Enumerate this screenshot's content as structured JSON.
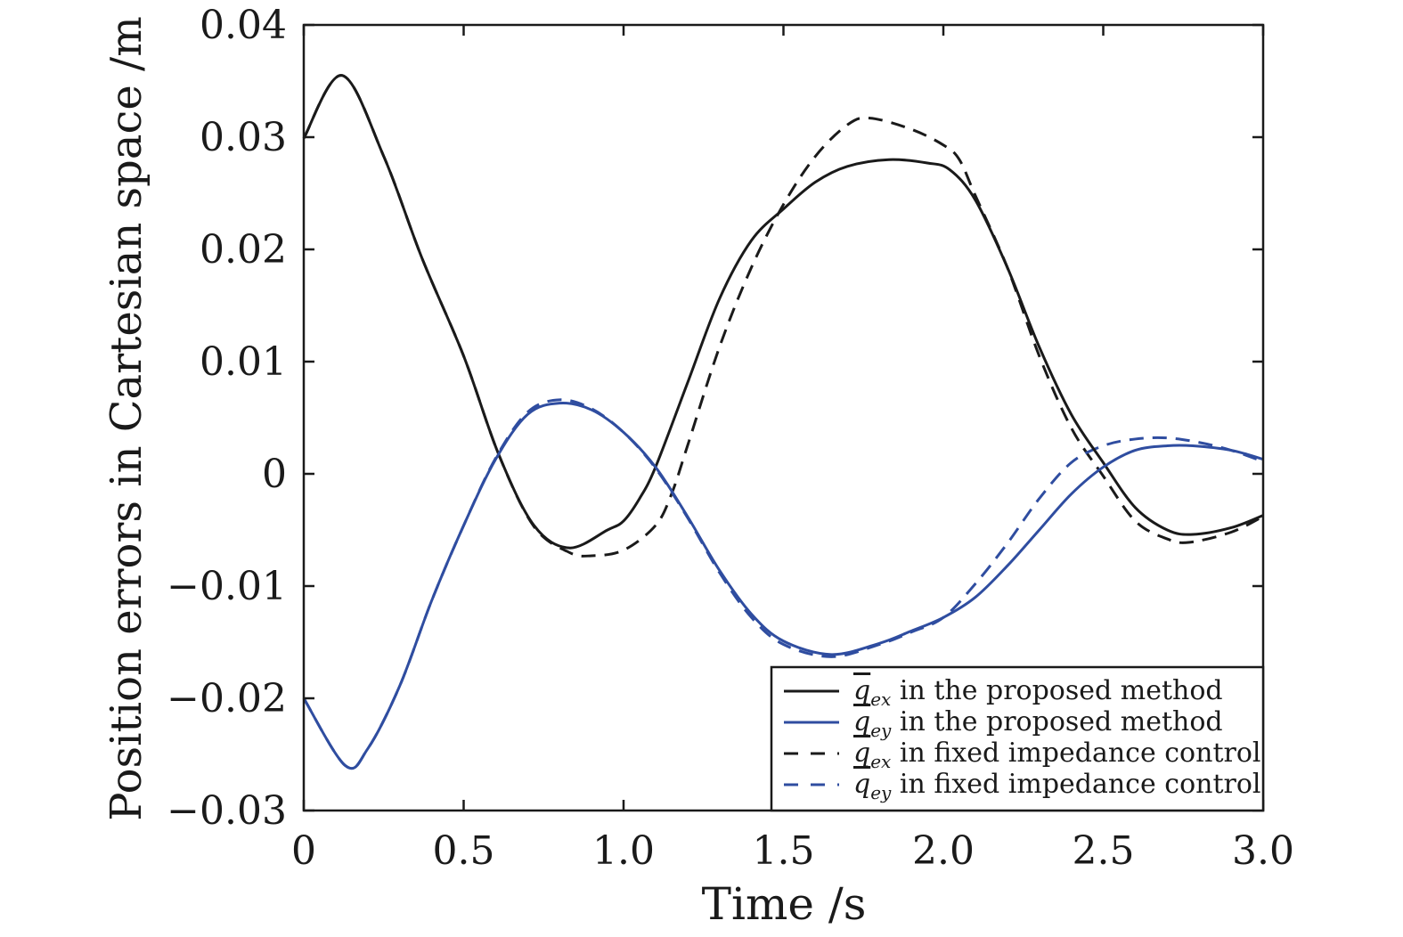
{
  "chart_data": {
    "type": "line",
    "title": "",
    "xlabel": "Time /s",
    "ylabel": "Position errors in Cartesian space /m",
    "xlim": [
      0,
      3.0
    ],
    "ylim": [
      -0.03,
      0.04
    ],
    "xticks": [
      0,
      0.5,
      1.0,
      1.5,
      2.0,
      2.5,
      3.0
    ],
    "xtick_labels": [
      "0",
      "0.5",
      "1.0",
      "1.5",
      "2.0",
      "2.5",
      "3.0"
    ],
    "yticks": [
      -0.03,
      -0.02,
      -0.01,
      0,
      0.01,
      0.02,
      0.03,
      0.04
    ],
    "ytick_labels": [
      "−0.03",
      "−0.02",
      "−0.01",
      "0",
      "0.01",
      "0.02",
      "0.03",
      "0.04"
    ],
    "grid": false,
    "legend_position": "bottom-right",
    "series": [
      {
        "name": "q_ex in the proposed method",
        "symbol": "q",
        "sub": "ex",
        "label": " in the proposed method",
        "color": "#1a1a1a",
        "dash": "solid",
        "x": [
          0,
          0.12,
          0.25,
          0.37,
          0.5,
          0.61,
          0.72,
          0.83,
          0.95,
          1.0,
          1.05,
          1.1,
          1.2,
          1.3,
          1.4,
          1.5,
          1.6,
          1.7,
          1.83,
          1.95,
          2.02,
          2.1,
          2.2,
          2.3,
          2.4,
          2.5,
          2.6,
          2.7,
          2.78,
          2.9,
          3.0
        ],
        "y": [
          0.0299,
          0.0355,
          0.0283,
          0.0192,
          0.0105,
          0.0017,
          -0.0046,
          -0.0066,
          -0.005,
          -0.0042,
          -0.0022,
          0.0006,
          0.0081,
          0.0156,
          0.0208,
          0.0236,
          0.026,
          0.0274,
          0.028,
          0.0277,
          0.0271,
          0.0244,
          0.0184,
          0.0113,
          0.0053,
          0.001,
          -0.003,
          -0.005,
          -0.0054,
          -0.0048,
          -0.0037
        ]
      },
      {
        "name": "q_ey in the proposed method",
        "symbol": "q",
        "sub": "ey",
        "label": " in the proposed method",
        "color": "#2f4da0",
        "dash": "solid",
        "x": [
          0,
          0.13,
          0.2,
          0.3,
          0.4,
          0.5,
          0.6,
          0.7,
          0.8,
          0.9,
          1.0,
          1.1,
          1.2,
          1.3,
          1.4,
          1.5,
          1.65,
          1.8,
          1.9,
          2.0,
          2.1,
          2.2,
          2.3,
          2.4,
          2.5,
          2.6,
          2.7,
          2.78,
          2.9,
          3.0
        ],
        "y": [
          -0.02,
          -0.026,
          -0.0245,
          -0.0189,
          -0.0113,
          -0.0046,
          0.0013,
          0.0053,
          0.0063,
          0.0057,
          0.0037,
          0.0006,
          -0.0038,
          -0.0086,
          -0.0125,
          -0.0149,
          -0.0161,
          -0.0151,
          -0.014,
          -0.0128,
          -0.011,
          -0.0082,
          -0.005,
          -0.0018,
          0.0006,
          0.0021,
          0.0025,
          0.0025,
          0.0021,
          0.0013
        ]
      },
      {
        "name": "q_ex in fixed impedance control",
        "symbol": "q",
        "sub": "ex",
        "label": " in fixed impedance control",
        "color": "#1a1a1a",
        "dash": "dashed",
        "x": [
          0,
          0.12,
          0.25,
          0.37,
          0.5,
          0.61,
          0.72,
          0.83,
          0.9,
          1.0,
          1.1,
          1.15,
          1.2,
          1.3,
          1.4,
          1.5,
          1.6,
          1.7,
          1.77,
          1.9,
          2.0,
          2.05,
          2.1,
          2.2,
          2.3,
          2.4,
          2.5,
          2.6,
          2.7,
          2.77,
          2.9,
          3.0
        ],
        "y": [
          0.0299,
          0.0355,
          0.0283,
          0.0192,
          0.0105,
          0.0017,
          -0.0047,
          -0.007,
          -0.0073,
          -0.0068,
          -0.0046,
          -0.0018,
          0.0025,
          0.0113,
          0.0184,
          0.024,
          0.0283,
          0.0311,
          0.0317,
          0.0307,
          0.0293,
          0.028,
          0.0248,
          0.0184,
          0.0105,
          0.0041,
          -0.0002,
          -0.0042,
          -0.0058,
          -0.0061,
          -0.0052,
          -0.0038
        ]
      },
      {
        "name": "q_ey in fixed impedance control",
        "symbol": "q",
        "sub": "ey",
        "label": " in fixed impedance control",
        "color": "#2f4da0",
        "dash": "dashed",
        "x": [
          0,
          0.13,
          0.2,
          0.3,
          0.4,
          0.5,
          0.6,
          0.7,
          0.8,
          0.9,
          1.0,
          1.1,
          1.2,
          1.3,
          1.4,
          1.5,
          1.65,
          1.8,
          1.9,
          2.0,
          2.1,
          2.2,
          2.3,
          2.4,
          2.5,
          2.6,
          2.7,
          2.8,
          2.9,
          3.0
        ],
        "y": [
          -0.02,
          -0.026,
          -0.0245,
          -0.0189,
          -0.0113,
          -0.0046,
          0.0014,
          0.0055,
          0.0066,
          0.0058,
          0.0037,
          0.0005,
          -0.0039,
          -0.0088,
          -0.0128,
          -0.0152,
          -0.0163,
          -0.0152,
          -0.0141,
          -0.0128,
          -0.0098,
          -0.0062,
          -0.0022,
          0.001,
          0.0025,
          0.0031,
          0.0032,
          0.0028,
          0.0021,
          0.0011
        ]
      }
    ]
  }
}
